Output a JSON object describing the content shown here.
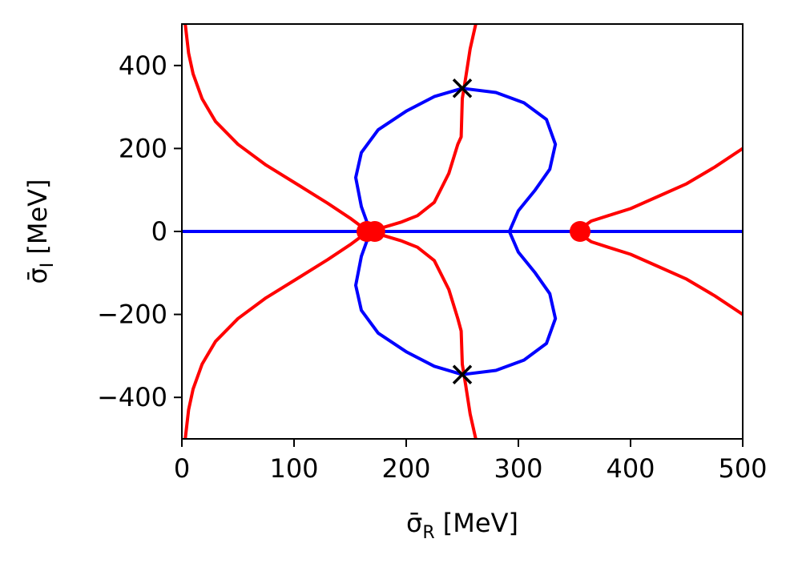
{
  "chart_data": {
    "type": "line",
    "title": "",
    "xlabel": {
      "base": "σ̄",
      "sub": "R",
      "unit": " [MeV]"
    },
    "ylabel": {
      "base": "σ̄",
      "sub": "I",
      "unit": " [MeV]"
    },
    "xlim": [
      0,
      500
    ],
    "ylim": [
      -500,
      500
    ],
    "xticks": [
      0,
      100,
      200,
      300,
      400,
      500
    ],
    "yticks": [
      -400,
      -200,
      0,
      200,
      400
    ],
    "xtick_labels": [
      "0",
      "100",
      "200",
      "300",
      "400",
      "500"
    ],
    "ytick_labels": [
      "−400",
      "−200",
      "0",
      "200",
      "400"
    ],
    "grid": false,
    "colors": {
      "red": "#ff0000",
      "blue": "#0000ff",
      "marker": "#000000"
    },
    "series": [
      {
        "color": "red",
        "points": [
          [
            3,
            500
          ],
          [
            6,
            430
          ],
          [
            10,
            380
          ],
          [
            18,
            320
          ],
          [
            30,
            265
          ],
          [
            50,
            210
          ],
          [
            75,
            160
          ],
          [
            105,
            110
          ],
          [
            130,
            68
          ],
          [
            150,
            32
          ],
          [
            163,
            6
          ],
          [
            167,
            0
          ]
        ]
      },
      {
        "color": "red",
        "points": [
          [
            3,
            -500
          ],
          [
            6,
            -430
          ],
          [
            10,
            -380
          ],
          [
            18,
            -320
          ],
          [
            30,
            -265
          ],
          [
            50,
            -210
          ],
          [
            75,
            -160
          ],
          [
            105,
            -110
          ],
          [
            130,
            -68
          ],
          [
            150,
            -32
          ],
          [
            163,
            -6
          ],
          [
            167,
            0
          ]
        ]
      },
      {
        "color": "red",
        "points": [
          [
            170,
            0
          ],
          [
            180,
            10
          ],
          [
            195,
            22
          ],
          [
            210,
            38
          ],
          [
            225,
            70
          ],
          [
            238,
            140
          ],
          [
            246,
            210
          ],
          [
            249,
            228
          ],
          [
            250,
            320
          ],
          [
            253,
            370
          ],
          [
            257,
            440
          ],
          [
            262,
            500
          ]
        ]
      },
      {
        "color": "red",
        "points": [
          [
            170,
            0
          ],
          [
            180,
            -10
          ],
          [
            195,
            -22
          ],
          [
            210,
            -38
          ],
          [
            225,
            -70
          ],
          [
            238,
            -140
          ],
          [
            246,
            -210
          ],
          [
            249,
            -240
          ],
          [
            250,
            -320
          ],
          [
            253,
            -370
          ],
          [
            257,
            -440
          ],
          [
            262,
            -500
          ]
        ]
      },
      {
        "color": "red",
        "points": [
          [
            355,
            0
          ],
          [
            358,
            12
          ],
          [
            365,
            25
          ],
          [
            380,
            38
          ],
          [
            400,
            55
          ],
          [
            425,
            85
          ],
          [
            450,
            115
          ],
          [
            475,
            155
          ],
          [
            500,
            200
          ]
        ]
      },
      {
        "color": "red",
        "points": [
          [
            355,
            0
          ],
          [
            358,
            -12
          ],
          [
            365,
            -25
          ],
          [
            380,
            -38
          ],
          [
            400,
            -55
          ],
          [
            425,
            -85
          ],
          [
            450,
            -115
          ],
          [
            475,
            -155
          ],
          [
            500,
            -200
          ]
        ]
      },
      {
        "color": "blue",
        "points": [
          [
            0,
            0
          ],
          [
            500,
            0
          ]
        ]
      },
      {
        "color": "blue",
        "points": [
          [
            168,
            0
          ],
          [
            160,
            60
          ],
          [
            155,
            130
          ],
          [
            160,
            190
          ],
          [
            175,
            245
          ],
          [
            200,
            290
          ],
          [
            225,
            325
          ],
          [
            250,
            345
          ],
          [
            280,
            335
          ],
          [
            305,
            310
          ],
          [
            325,
            270
          ],
          [
            333,
            210
          ],
          [
            328,
            150
          ],
          [
            315,
            100
          ],
          [
            300,
            50
          ],
          [
            292,
            0
          ],
          [
            300,
            -50
          ],
          [
            315,
            -100
          ],
          [
            328,
            -150
          ],
          [
            333,
            -210
          ],
          [
            325,
            -270
          ],
          [
            305,
            -310
          ],
          [
            280,
            -335
          ],
          [
            250,
            -345
          ],
          [
            225,
            -325
          ],
          [
            200,
            -290
          ],
          [
            175,
            -245
          ],
          [
            160,
            -190
          ],
          [
            155,
            -130
          ],
          [
            160,
            -60
          ],
          [
            168,
            0
          ]
        ]
      }
    ],
    "red_dots": [
      [
        165,
        0
      ],
      [
        172,
        0
      ],
      [
        355,
        0
      ]
    ],
    "cross_markers": [
      [
        250,
        345
      ],
      [
        250,
        -345
      ]
    ]
  }
}
